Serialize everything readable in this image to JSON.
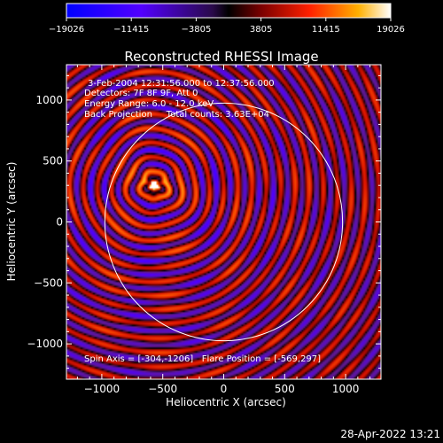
{
  "chart_data": {
    "type": "heatmap",
    "title": "Reconstructed RHESSI Image",
    "xlabel": "Heliocentric X (arcsec)",
    "ylabel": "Heliocentric Y (arcsec)",
    "xlim": [
      -1290,
      1290
    ],
    "ylim": [
      -1290,
      1290
    ],
    "x_ticks": [
      -1000,
      -500,
      0,
      500,
      1000
    ],
    "y_ticks": [
      1000,
      500,
      0,
      -500,
      -1000
    ],
    "x_tick_labels": [
      "−1000",
      "−500",
      "0",
      "500",
      "1000"
    ],
    "y_tick_labels": [
      "1000",
      "500",
      "0",
      "−500",
      "−1000"
    ],
    "colorbar": {
      "min": -19026,
      "max": 19026,
      "tick_labels": [
        "−19026",
        "−11415",
        "−3805",
        "3805",
        "11415",
        "19026"
      ]
    },
    "annotations": [
      "3-Feb-2004 12:31:56.000 to 12:37:56.000",
      "Detectors: 7F 8F 9F, Att 0",
      "Energy Range: 6.0 - 12.0 keV",
      "Back Projection     Total counts: 3.63E+04"
    ],
    "footer_annotation": "Spin Axis = [-304,-1206]   Flare Position = [-569,297]",
    "solar_disk": {
      "center": [
        0,
        0
      ],
      "radius_arcsec": 975
    },
    "flare_position": [
      -569,
      297
    ],
    "spin_axis": [
      -304,
      -1206
    ],
    "peak_value": 19026,
    "ring_spacing_arcsec": 115
  },
  "timestamp": "28-Apr-2022 13:21"
}
